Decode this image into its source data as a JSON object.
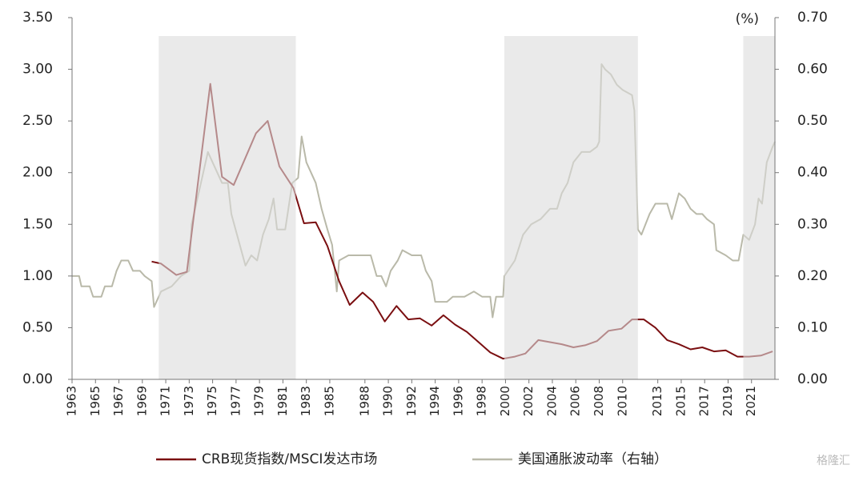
{
  "chart_data": {
    "type": "line",
    "y2label": "(%)",
    "xlim": [
      1963,
      2023
    ],
    "xticks": [
      1963,
      1965,
      1967,
      1969,
      1971,
      1973,
      1975,
      1977,
      1979,
      1981,
      1983,
      1985,
      1988,
      1990,
      1992,
      1994,
      1996,
      1998,
      2000,
      2002,
      2004,
      2006,
      2008,
      2010,
      2013,
      2015,
      2017,
      2019,
      2021
    ],
    "ylim": [
      0,
      3.5
    ],
    "yticks": [
      {
        "value": 0,
        "label": "0.00"
      },
      {
        "value": 0.5,
        "label": "0.50"
      },
      {
        "value": 1,
        "label": "1.00"
      },
      {
        "value": 1.5,
        "label": "1.50"
      },
      {
        "value": 2,
        "label": "2.00"
      },
      {
        "value": 2.5,
        "label": "2.50"
      },
      {
        "value": 3,
        "label": "3.00"
      },
      {
        "value": 3.5,
        "label": "3.50"
      }
    ],
    "y2lim": [
      0,
      0.7
    ],
    "y2ticks": [
      {
        "value": 0,
        "label": "0.00"
      },
      {
        "value": 0.1,
        "label": "0.10"
      },
      {
        "value": 0.2,
        "label": "0.20"
      },
      {
        "value": 0.3,
        "label": "0.30"
      },
      {
        "value": 0.4,
        "label": "0.40"
      },
      {
        "value": 0.5,
        "label": "0.50"
      },
      {
        "value": 0.6,
        "label": "0.60"
      },
      {
        "value": 0.7,
        "label": "0.70"
      }
    ],
    "shaded_periods": [
      [
        1970.4,
        1982.1
      ],
      [
        1999.9,
        2011.3
      ],
      [
        2020.3,
        2023
      ]
    ],
    "shade_color": "#dcdcdc",
    "series": [
      {
        "name": "CRB现货指数/MSCI发达市场",
        "color": "#7a0e10",
        "x": [
          1969.8,
          1970.6,
          1971.9,
          1972.8,
          1974.8,
          1975.8,
          1976.8,
          1978.7,
          1979.7,
          1980.7,
          1981.9,
          1982.8,
          1983.8,
          1984.8,
          1985.8,
          1986.7,
          1987.8,
          1988.7,
          1989.7,
          1990.7,
          1991.7,
          1992.7,
          1993.7,
          1994.7,
          1995.7,
          1996.7,
          1997.7,
          1998.7,
          1999.8,
          2000.8,
          2001.7,
          2002.8,
          2003.8,
          2004.8,
          2005.8,
          2006.8,
          2007.8,
          2008.8,
          2009.9,
          2010.8,
          2011.8,
          2012.8,
          2013.8,
          2014.8,
          2015.8,
          2016.8,
          2017.8,
          2018.8,
          2019.8,
          2020.8,
          2021.8,
          2022.8
        ],
        "values": [
          1.14,
          1.12,
          1.01,
          1.04,
          2.86,
          1.96,
          1.88,
          2.38,
          2.5,
          2.06,
          1.85,
          1.51,
          1.52,
          1.29,
          0.95,
          0.72,
          0.84,
          0.75,
          0.56,
          0.71,
          0.58,
          0.59,
          0.52,
          0.62,
          0.53,
          0.46,
          0.36,
          0.26,
          0.2,
          0.22,
          0.25,
          0.38,
          0.36,
          0.34,
          0.31,
          0.33,
          0.37,
          0.47,
          0.49,
          0.58,
          0.58,
          0.5,
          0.38,
          0.34,
          0.29,
          0.31,
          0.27,
          0.28,
          0.22,
          0.22,
          0.23,
          0.27
        ]
      },
      {
        "name": "美国通胀波动率（右轴）",
        "color": "#b9b9a9",
        "axis": "y2",
        "x": [
          1963.0,
          1963.6,
          1963.8,
          1964.5,
          1964.8,
          1965.5,
          1965.8,
          1966.4,
          1966.8,
          1967.2,
          1967.8,
          1968.2,
          1968.8,
          1969.2,
          1969.8,
          1970.0,
          1970.6,
          1971.5,
          1972.3,
          1973.0,
          1973.2,
          1973.7,
          1974.2,
          1974.6,
          1975.2,
          1975.8,
          1976.3,
          1976.6,
          1977.2,
          1977.8,
          1978.3,
          1978.8,
          1979.3,
          1979.8,
          1980.2,
          1980.5,
          1981.2,
          1981.8,
          1982.3,
          1982.6,
          1983.0,
          1983.8,
          1984.3,
          1984.8,
          1985.2,
          1985.6,
          1985.8,
          1986.6,
          1987.5,
          1988.5,
          1989.0,
          1989.4,
          1989.8,
          1990.2,
          1990.8,
          1991.2,
          1992.0,
          1992.8,
          1993.2,
          1993.7,
          1994.0,
          1995.0,
          1995.5,
          1996.5,
          1997.3,
          1998.0,
          1998.7,
          1998.9,
          1999.2,
          1999.8,
          1999.9,
          2000.8,
          2001.5,
          2002.2,
          2003.0,
          2003.8,
          2004.4,
          2004.8,
          2005.3,
          2005.8,
          2006.5,
          2007.2,
          2007.8,
          2008.0,
          2008.2,
          2008.5,
          2009.0,
          2009.5,
          2010.0,
          2010.8,
          2011.0,
          2011.3,
          2011.6,
          2012.3,
          2012.8,
          2013.3,
          2013.8,
          2014.2,
          2014.8,
          2015.3,
          2015.8,
          2016.3,
          2016.8,
          2017.2,
          2017.8,
          2018.0,
          2018.8,
          2019.4,
          2019.9,
          2020.3,
          2020.8,
          2021.3,
          2021.6,
          2021.9,
          2022.3,
          2022.8,
          2023.0
        ],
        "values": [
          0.2,
          0.2,
          0.18,
          0.18,
          0.16,
          0.16,
          0.18,
          0.18,
          0.21,
          0.23,
          0.23,
          0.21,
          0.21,
          0.2,
          0.19,
          0.14,
          0.17,
          0.18,
          0.2,
          0.21,
          0.3,
          0.35,
          0.4,
          0.44,
          0.41,
          0.38,
          0.38,
          0.32,
          0.27,
          0.22,
          0.24,
          0.23,
          0.28,
          0.31,
          0.35,
          0.29,
          0.29,
          0.38,
          0.39,
          0.47,
          0.42,
          0.38,
          0.33,
          0.29,
          0.26,
          0.17,
          0.23,
          0.24,
          0.24,
          0.24,
          0.2,
          0.2,
          0.18,
          0.21,
          0.23,
          0.25,
          0.24,
          0.24,
          0.21,
          0.19,
          0.15,
          0.15,
          0.16,
          0.16,
          0.17,
          0.16,
          0.16,
          0.12,
          0.16,
          0.16,
          0.2,
          0.23,
          0.28,
          0.3,
          0.31,
          0.33,
          0.33,
          0.36,
          0.38,
          0.42,
          0.44,
          0.44,
          0.45,
          0.46,
          0.61,
          0.6,
          0.59,
          0.57,
          0.56,
          0.55,
          0.52,
          0.29,
          0.28,
          0.32,
          0.34,
          0.34,
          0.34,
          0.31,
          0.36,
          0.35,
          0.33,
          0.32,
          0.32,
          0.31,
          0.3,
          0.25,
          0.24,
          0.23,
          0.23,
          0.28,
          0.27,
          0.3,
          0.35,
          0.34,
          0.42,
          0.45,
          0.46
        ]
      }
    ],
    "watermark": "格隆汇"
  }
}
